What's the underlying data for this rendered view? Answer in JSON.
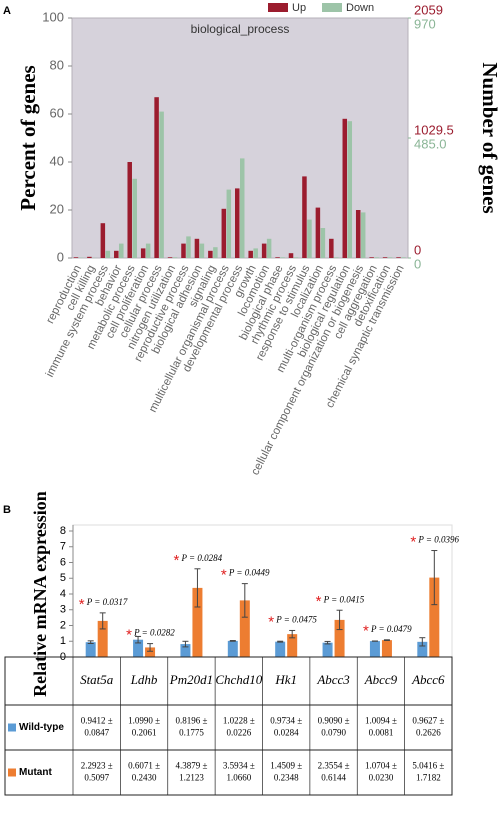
{
  "chart_data": [
    {
      "type": "bar",
      "panel_label": "A",
      "title": "biological_process",
      "ylabel": "Percent of genes",
      "y2label": "Number of genes",
      "categories": [
        "reproduction",
        "cell killing",
        "immune system process",
        "behavior",
        "metabolic process",
        "cell proliferation",
        "cellular process",
        "nitrogen utilization",
        "reproductive process",
        "biological adhesion",
        "signaling",
        "multicellular organismal process",
        "developmental process",
        "growth",
        "locomotion",
        "biological phase",
        "rhythmic process",
        "response to stimulus",
        "localization",
        "multi-organism process",
        "biological regulation",
        "cellular component organization or biogenesis",
        "cell aggregation",
        "detoxification",
        "chemical synaptic transmission"
      ],
      "series": [
        {
          "name": "Up",
          "color": "#9b1c2e",
          "tick_color": "#9b1c2e",
          "values": [
            0.3,
            0.5,
            14.5,
            3,
            40,
            4,
            67,
            0.3,
            6,
            8,
            3,
            20.5,
            29,
            3,
            6,
            0.3,
            2,
            34,
            21,
            8,
            58,
            20,
            0.3,
            0.3,
            0.3
          ],
          "count_lim": [
            0,
            2059
          ],
          "count_ticks": [
            0,
            1029.5,
            2059
          ]
        },
        {
          "name": "Down",
          "color": "#9dc4a8",
          "tick_color": "#8ab596",
          "values": [
            0.2,
            0.1,
            3,
            6,
            33,
            6,
            61,
            0.3,
            9,
            6,
            4.5,
            28.5,
            41.5,
            4,
            8,
            0.3,
            0.3,
            16,
            12.5,
            0.3,
            57,
            19,
            0.3,
            0.3,
            0.3
          ],
          "count_lim": [
            0,
            970
          ],
          "count_ticks": [
            0,
            {
              "value": 485,
              "label": "485.0"
            },
            970
          ]
        }
      ],
      "ylim": [
        0,
        100
      ],
      "yticks": [
        0,
        20,
        40,
        60,
        80,
        100
      ],
      "legend": "top"
    },
    {
      "type": "bar",
      "panel_label": "B",
      "ylabel": "Relative mRNA expression",
      "categories": [
        "Stat5a",
        "Ldhb",
        "Pm20d1",
        "Chchd10",
        "Hk1",
        "Abcc3",
        "Abcc9",
        "Abcc6"
      ],
      "series": [
        {
          "name": "Wild-type",
          "color": "#5b9bd5",
          "values": [
            0.9412,
            1.099,
            0.8196,
            1.0228,
            0.9734,
            0.909,
            1.0094,
            0.9627
          ],
          "errors": [
            0.0847,
            0.2061,
            0.1775,
            0.0226,
            0.0284,
            0.079,
            0.0081,
            0.2626
          ],
          "value_labels": [
            "0.9412 ± 0.0847",
            "1.0990 ± 0.2061",
            "0.8196 ± 0.1775",
            "1.0228 ± 0.0226",
            "0.9734 ± 0.0284",
            "0.9090 ± 0.0790",
            "1.0094 ± 0.0081",
            "0.9627 ± 0.2626"
          ]
        },
        {
          "name": "Mutant",
          "color": "#ed7d31",
          "values": [
            2.2923,
            0.6071,
            4.3879,
            3.5934,
            1.4509,
            2.3554,
            1.0704,
            5.0416
          ],
          "errors": [
            0.5097,
            0.243,
            1.2123,
            1.066,
            0.2348,
            0.6144,
            0.023,
            1.7182
          ],
          "value_labels": [
            "2.2923 ± 0.5097",
            "0.6071 ± 0.2430",
            "4.3879 ± 1.2123",
            "3.5934 ± 1.0660",
            "1.4509 ± 0.2348",
            "2.3554 ± 0.6144",
            "1.0704 ± 0.0230",
            "5.0416 ± 1.7182"
          ]
        }
      ],
      "annotation_marker": "*",
      "annotations": [
        "P = 0.0317",
        "P = 0.0282",
        "P = 0.0284",
        "P = 0.0449",
        "P = 0.0475",
        "P = 0.0415",
        "P = 0.0479",
        "P = 0.0396"
      ],
      "ylim": [
        0,
        8
      ],
      "yticks": [
        0,
        1,
        2,
        3,
        4,
        5,
        6,
        7,
        8
      ],
      "legend": "table"
    }
  ]
}
